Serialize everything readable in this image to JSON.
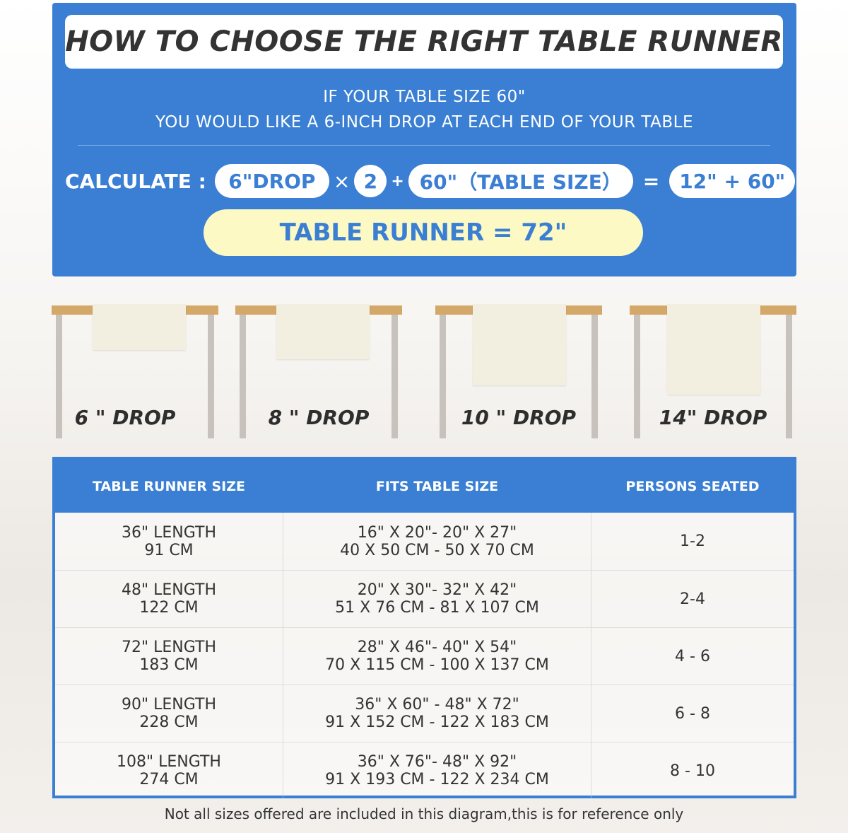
{
  "title": "HOW TO CHOOSE THE RIGHT TABLE RUNNER",
  "info": [
    "IF YOUR TABLE SIZE 60\"",
    "YOU WOULD LIKE A 6-INCH DROP AT EACH END OF YOUR TABLE"
  ],
  "calculation": {
    "label": "CALCULATE :",
    "drop": "6\"DROP",
    "times": "×",
    "multiplier": "2",
    "plus": "+",
    "table_size": "60\"（TABLE SIZE）",
    "equals": "=",
    "sum": "12\" + 60\"",
    "result": "TABLE RUNNER = 72\""
  },
  "colors": {
    "primary": "#3a7fd3",
    "highlight": "#fdf9c4",
    "tabletop": "#d4a868"
  },
  "drops": [
    {
      "label": "6 \" DROP",
      "inches": 6
    },
    {
      "label": "8 \" DROP",
      "inches": 8
    },
    {
      "label": "10 \" DROP",
      "inches": 10
    },
    {
      "label": "14\" DROP",
      "inches": 14
    }
  ],
  "size_table": {
    "headers": [
      "TABLE RUNNER SIZE",
      "FITS TABLE SIZE",
      "PERSONS SEATED"
    ],
    "rows": [
      {
        "runner": [
          "36\" LENGTH",
          "91 CM"
        ],
        "fits": [
          "16\" X 20\"- 20\" X 27\"",
          "40 X 50 CM - 50 X 70 CM"
        ],
        "persons": "1-2"
      },
      {
        "runner": [
          "48\" LENGTH",
          "122 CM"
        ],
        "fits": [
          "20\" X 30\"- 32\" X 42\"",
          "51 X 76 CM - 81 X 107 CM"
        ],
        "persons": "2-4"
      },
      {
        "runner": [
          "72\" LENGTH",
          "183 CM"
        ],
        "fits": [
          "28\" X 46\"- 40\" X 54\"",
          "70 X 115 CM - 100 X 137 CM"
        ],
        "persons": "4 - 6"
      },
      {
        "runner": [
          "90\" LENGTH",
          "228 CM"
        ],
        "fits": [
          "36\" X 60\" - 48\" X 72\"",
          "91 X 152 CM - 122 X 183 CM"
        ],
        "persons": "6 - 8"
      },
      {
        "runner": [
          "108\" LENGTH",
          "274 CM"
        ],
        "fits": [
          "36\" X 76\"- 48\" X 92\"",
          "91 X 193 CM - 122 X 234 CM"
        ],
        "persons": "8 - 10"
      }
    ]
  },
  "footer": "Not all sizes offered are included in this diagram,this is for reference only"
}
